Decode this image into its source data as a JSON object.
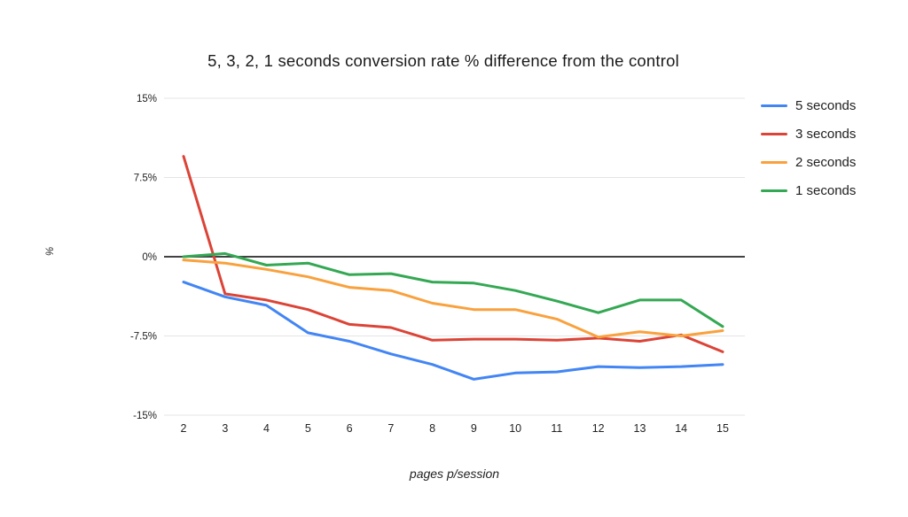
{
  "title": "5, 3, 2, 1 seconds conversion rate % difference from the control",
  "chart_data": {
    "type": "line",
    "title": "5, 3, 2, 1 seconds conversion rate % difference from the control",
    "xlabel": "pages p/session",
    "ylabel": "%",
    "categories": [
      2,
      3,
      4,
      5,
      6,
      7,
      8,
      9,
      10,
      11,
      12,
      13,
      14,
      15
    ],
    "series": [
      {
        "name": "5 seconds",
        "color": "#4285F4",
        "values": [
          -2.4,
          -3.8,
          -4.6,
          -7.2,
          -8.0,
          -9.2,
          -10.2,
          -11.6,
          -11.0,
          -10.9,
          -10.4,
          -10.5,
          -10.4,
          -10.2
        ]
      },
      {
        "name": "3 seconds",
        "color": "#DB4437",
        "values": [
          9.5,
          -3.5,
          -4.1,
          -5.0,
          -6.4,
          -6.7,
          -7.9,
          -7.8,
          -7.8,
          -7.9,
          -7.7,
          -8.0,
          -7.4,
          -9.0
        ]
      },
      {
        "name": "2 seconds",
        "color": "#F9A13D",
        "values": [
          -0.3,
          -0.6,
          -1.2,
          -1.9,
          -2.9,
          -3.2,
          -4.4,
          -5.0,
          -5.0,
          -5.9,
          -7.6,
          -7.1,
          -7.5,
          -7.0
        ]
      },
      {
        "name": "1 seconds",
        "color": "#34A853",
        "values": [
          0.0,
          0.3,
          -0.8,
          -0.6,
          -1.7,
          -1.6,
          -2.4,
          -2.5,
          -3.2,
          -4.2,
          -5.3,
          -4.1,
          -4.1,
          -6.6
        ]
      }
    ],
    "y_ticks": [
      {
        "value": 15,
        "label": "15%"
      },
      {
        "value": 7.5,
        "label": "7.5%"
      },
      {
        "value": 0,
        "label": "0%"
      },
      {
        "value": -7.5,
        "label": "-7.5%"
      },
      {
        "value": -15,
        "label": "-15%"
      }
    ],
    "ylim": [
      -15,
      15
    ],
    "grid": true,
    "legend_position": "right"
  }
}
